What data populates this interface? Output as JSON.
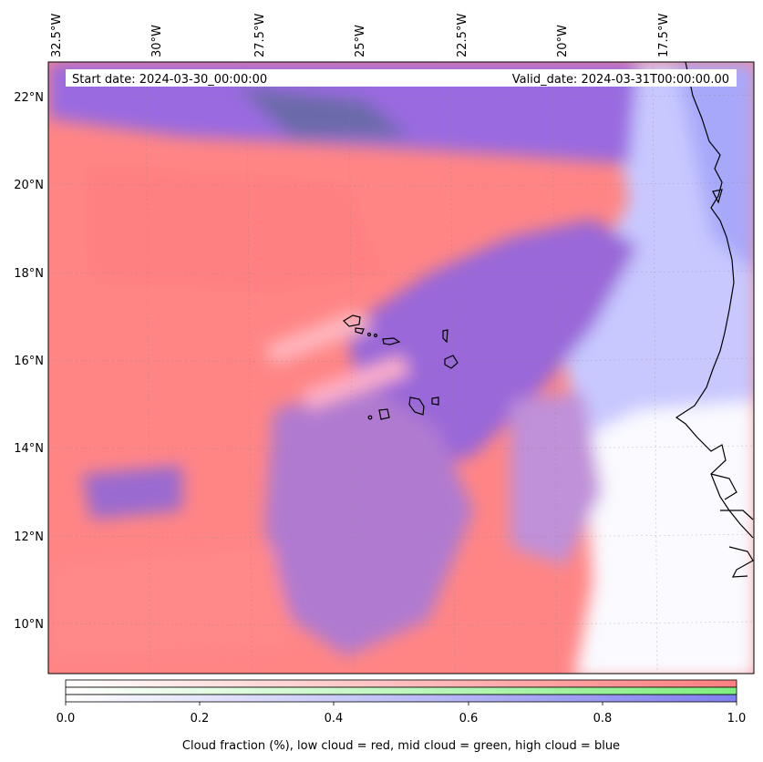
{
  "header": {
    "start_date": "Start date: 2024-03-30_00:00:00",
    "valid_date": "Valid_date: 2024-03-31T00:00:00.00"
  },
  "map": {
    "region": "Cape Verde / West Africa coast",
    "lon_labels": [
      "32.5°W",
      "30°W",
      "27.5°W",
      "25°W",
      "22.5°W",
      "20°W",
      "17.5°W"
    ],
    "lat_labels": [
      "22°N",
      "20°N",
      "18°N",
      "16°N",
      "14°N",
      "12°N",
      "10°N"
    ]
  },
  "colorbar": {
    "tick_labels": [
      "0.0",
      "0.2",
      "0.4",
      "0.6",
      "0.8",
      "1.0"
    ],
    "label": "Cloud fraction (%), low cloud = red, mid cloud = green, high cloud = blue",
    "colors": {
      "low": "#ff7f7f",
      "mid": "#7fef7f",
      "high": "#7f7fef"
    }
  }
}
